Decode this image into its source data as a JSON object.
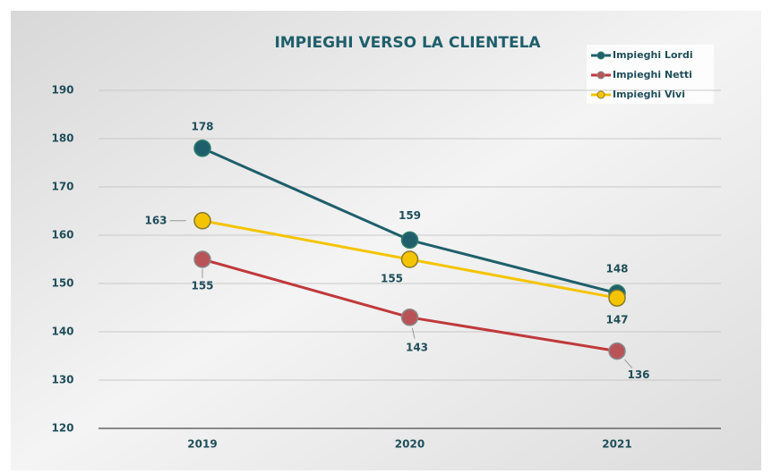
{
  "chart_data": {
    "type": "line",
    "title": "IMPIEGHI VERSO LA CLIENTELA",
    "categories": [
      "2019",
      "2020",
      "2021"
    ],
    "series": [
      {
        "name": "Impieghi Lordi",
        "color": "#1f5f6b",
        "values": [
          178,
          159,
          148
        ]
      },
      {
        "name": "Impieghi Netti",
        "color": "#c0393b",
        "values": [
          155,
          143,
          136
        ]
      },
      {
        "name": "Impieghi Vivi",
        "color": "#f5c400",
        "values": [
          163,
          155,
          147
        ]
      }
    ],
    "ylim": [
      120,
      190
    ],
    "yticks": [
      120,
      130,
      140,
      150,
      160,
      170,
      180,
      190
    ],
    "grid": true,
    "legend": "top-right"
  }
}
